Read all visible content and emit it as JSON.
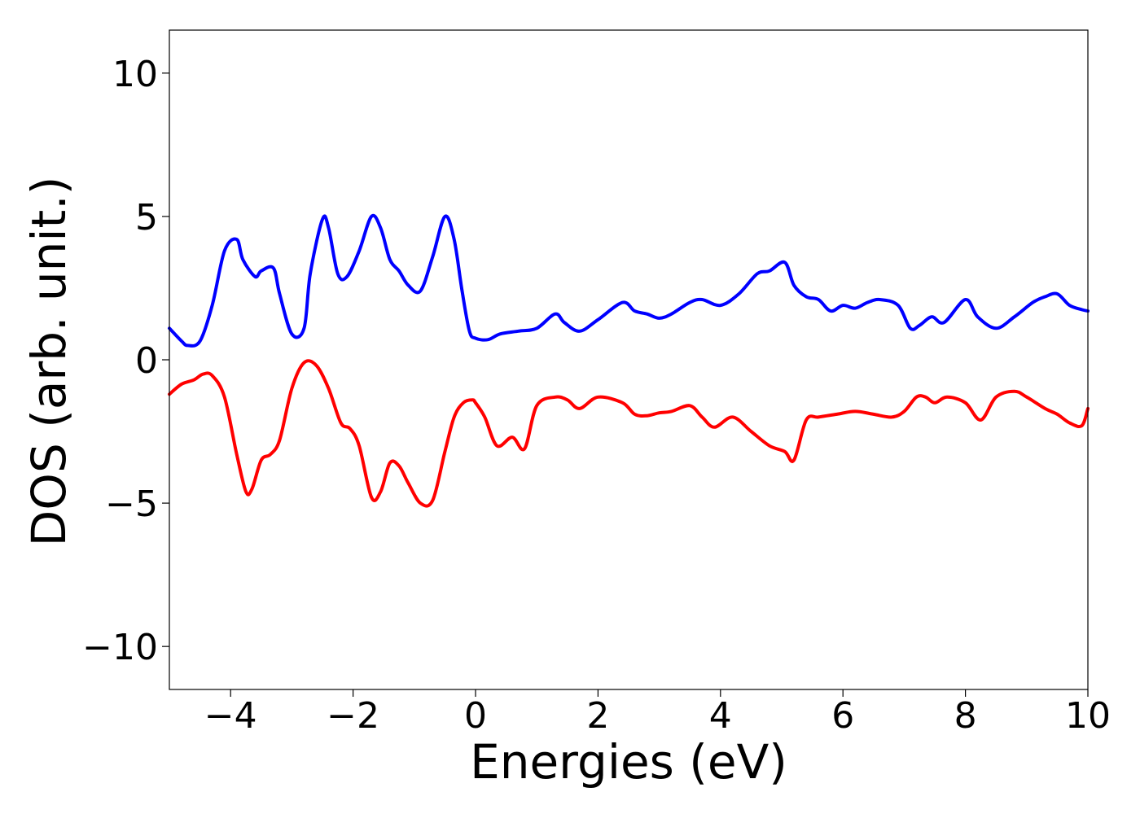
{
  "chart_data": {
    "type": "line",
    "xlabel": "Energies (eV)",
    "ylabel": "DOS (arb. unit.)",
    "xlim": [
      -5,
      10
    ],
    "ylim": [
      -11.5,
      11.5
    ],
    "xticks": [
      -4,
      -2,
      0,
      2,
      4,
      6,
      8,
      10
    ],
    "yticks": [
      -10,
      -5,
      0,
      5,
      10
    ],
    "xtick_labels": [
      "−4",
      "−2",
      "0",
      "2",
      "4",
      "6",
      "8",
      "10"
    ],
    "ytick_labels": [
      "−10",
      "−5",
      "0",
      "5",
      "10"
    ],
    "grid": false,
    "series": [
      {
        "color": "#0000ff",
        "x": [
          -5.0,
          -4.8,
          -4.7,
          -4.5,
          -4.3,
          -4.1,
          -3.9,
          -3.8,
          -3.6,
          -3.5,
          -3.3,
          -3.2,
          -3.0,
          -2.8,
          -2.7,
          -2.5,
          -2.4,
          -2.25,
          -2.1,
          -1.9,
          -1.7,
          -1.55,
          -1.4,
          -1.25,
          -1.1,
          -0.9,
          -0.7,
          -0.5,
          -0.35,
          -0.22,
          -0.1,
          0.0,
          0.2,
          0.4,
          0.7,
          1.0,
          1.3,
          1.45,
          1.7,
          2.0,
          2.4,
          2.6,
          2.8,
          3.0,
          3.2,
          3.5,
          3.7,
          4.0,
          4.3,
          4.6,
          4.8,
          5.05,
          5.2,
          5.4,
          5.6,
          5.8,
          6.0,
          6.2,
          6.4,
          6.6,
          6.9,
          7.1,
          7.25,
          7.45,
          7.65,
          8.0,
          8.2,
          8.5,
          8.8,
          9.1,
          9.3,
          9.5,
          9.7,
          9.9,
          10.0
        ],
        "values": [
          1.1,
          0.65,
          0.5,
          0.65,
          1.9,
          3.8,
          4.2,
          3.5,
          2.9,
          3.1,
          3.2,
          2.3,
          0.9,
          1.1,
          3.0,
          4.9,
          4.6,
          3.0,
          2.9,
          3.8,
          5.0,
          4.6,
          3.5,
          3.1,
          2.6,
          2.4,
          3.6,
          5.0,
          4.2,
          2.4,
          1.0,
          0.75,
          0.7,
          0.9,
          1.0,
          1.1,
          1.6,
          1.3,
          1.0,
          1.4,
          2.0,
          1.7,
          1.6,
          1.45,
          1.6,
          2.0,
          2.1,
          1.9,
          2.3,
          3.0,
          3.1,
          3.4,
          2.6,
          2.2,
          2.1,
          1.7,
          1.9,
          1.8,
          2.0,
          2.1,
          1.9,
          1.1,
          1.2,
          1.5,
          1.3,
          2.1,
          1.5,
          1.1,
          1.5,
          2.0,
          2.2,
          2.3,
          1.9,
          1.75,
          1.7
        ]
      },
      {
        "color": "#ff0000",
        "x": [
          -5.0,
          -4.8,
          -4.6,
          -4.45,
          -4.3,
          -4.1,
          -3.9,
          -3.75,
          -3.65,
          -3.5,
          -3.35,
          -3.2,
          -3.0,
          -2.8,
          -2.6,
          -2.4,
          -2.2,
          -2.05,
          -1.9,
          -1.7,
          -1.55,
          -1.4,
          -1.25,
          -1.1,
          -0.9,
          -0.7,
          -0.5,
          -0.35,
          -0.2,
          -0.05,
          0.0,
          0.15,
          0.35,
          0.6,
          0.8,
          1.0,
          1.3,
          1.5,
          1.7,
          2.0,
          2.4,
          2.6,
          2.8,
          3.0,
          3.2,
          3.5,
          3.7,
          3.9,
          4.2,
          4.5,
          4.8,
          5.05,
          5.2,
          5.4,
          5.6,
          5.9,
          6.2,
          6.5,
          6.8,
          7.0,
          7.2,
          7.35,
          7.5,
          7.7,
          8.0,
          8.25,
          8.5,
          8.8,
          9.0,
          9.3,
          9.5,
          9.7,
          9.9,
          10.0
        ],
        "values": [
          -1.2,
          -0.85,
          -0.7,
          -0.5,
          -0.55,
          -1.3,
          -3.3,
          -4.6,
          -4.5,
          -3.5,
          -3.3,
          -2.8,
          -1.0,
          -0.1,
          -0.2,
          -1.0,
          -2.2,
          -2.4,
          -3.0,
          -4.8,
          -4.6,
          -3.6,
          -3.7,
          -4.3,
          -5.0,
          -4.9,
          -3.2,
          -2.0,
          -1.5,
          -1.4,
          -1.5,
          -2.0,
          -3.0,
          -2.7,
          -3.1,
          -1.6,
          -1.3,
          -1.4,
          -1.7,
          -1.3,
          -1.5,
          -1.9,
          -1.95,
          -1.85,
          -1.8,
          -1.6,
          -2.0,
          -2.35,
          -2.0,
          -2.5,
          -3.0,
          -3.2,
          -3.5,
          -2.1,
          -2.0,
          -1.9,
          -1.8,
          -1.9,
          -2.0,
          -1.8,
          -1.3,
          -1.3,
          -1.5,
          -1.3,
          -1.5,
          -2.1,
          -1.3,
          -1.1,
          -1.3,
          -1.7,
          -1.9,
          -2.2,
          -2.3,
          -1.7
        ]
      }
    ]
  }
}
